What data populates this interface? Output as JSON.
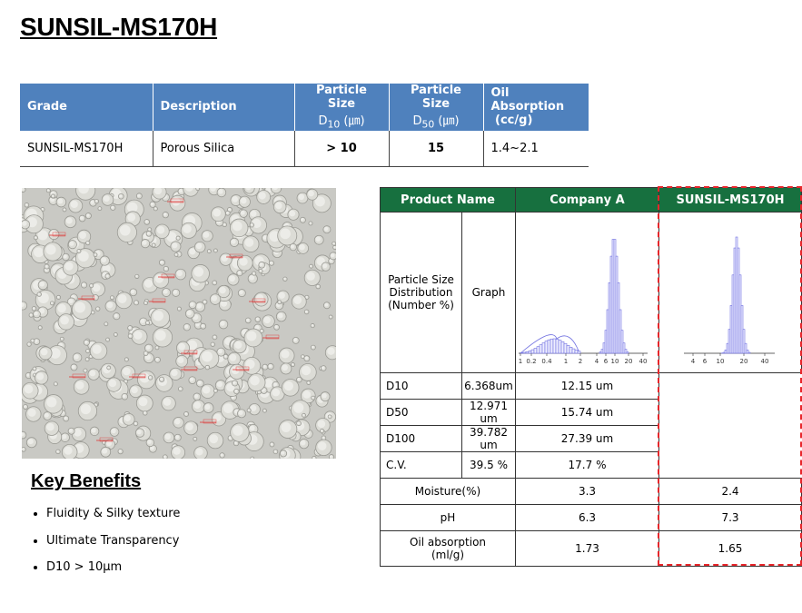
{
  "title": "SUNSIL-MS170H",
  "spec_table": {
    "headers": [
      "Grade",
      "Description",
      {
        "text": "Particle  Size",
        "symbol": "D",
        "sub": "10",
        "unit": "(㎛)"
      },
      {
        "text": "Particle Size",
        "symbol": "D",
        "sub": "50",
        "unit": "(㎛)"
      },
      {
        "text": "Oil Absorption",
        "unit": "(cc/g)"
      }
    ],
    "rows": [
      [
        "SUNSIL-MS170H",
        "Porous Silica",
        "> 10",
        "15",
        "1.4~2.1"
      ]
    ]
  },
  "key_benefits": {
    "title": "Key Benefits",
    "items": [
      "Fluidity & Silky texture",
      "Ultimate Transparency",
      "D10 > 10µm"
    ]
  },
  "comparison": {
    "headers": [
      "Product Name",
      "Company A",
      "SUNSIL-MS170H"
    ],
    "group_label": [
      "Particle Size",
      "Distribution",
      "(Number %)"
    ],
    "graph_label": "Graph",
    "graph_axes": [
      [
        "1",
        "0.2",
        "0.4",
        "1",
        "2",
        "4",
        "6",
        "10",
        "20",
        "40"
      ],
      [
        "4",
        "6",
        "10",
        "20",
        "40"
      ]
    ],
    "psd_rows": [
      {
        "label": "D10",
        "values": [
          "6.368um",
          "12.15 um"
        ]
      },
      {
        "label": "D50",
        "values": [
          "12.971 um",
          "15.74 um"
        ]
      },
      {
        "label": "D100",
        "values": [
          "39.782 um",
          "27.39 um"
        ]
      },
      {
        "label": "C.V.",
        "values": [
          "39.5 %",
          "17.7 %"
        ]
      }
    ],
    "rows": [
      {
        "label": [
          "Moisture(%)"
        ],
        "values": [
          "3.3",
          "2.4"
        ]
      },
      {
        "label": [
          "pH"
        ],
        "values": [
          "6.3",
          "7.3"
        ]
      },
      {
        "label": [
          "Oil absorption",
          "(ml/g)"
        ],
        "values": [
          "1.73",
          "1.65"
        ]
      }
    ]
  }
}
